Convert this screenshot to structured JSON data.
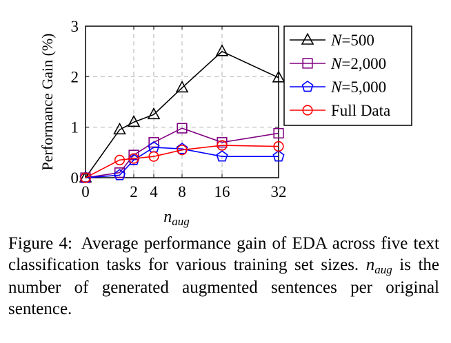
{
  "chart_data": {
    "type": "line",
    "title": "",
    "xlabel": "n",
    "xlabel_sub": "aug",
    "ylabel": "Performance Gain (%)",
    "xticks": [
      0,
      2,
      4,
      8,
      16,
      32
    ],
    "yticks": [
      0,
      1,
      2,
      3
    ],
    "ylim": [
      0,
      3
    ],
    "x_scale": "sqrt",
    "grid": "dashed",
    "legend_position": "outside-right",
    "series": [
      {
        "name": "N=500",
        "marker": "triangle",
        "color": "#000000",
        "x": [
          0,
          1,
          2,
          4,
          8,
          16,
          32
        ],
        "y": [
          0,
          0.95,
          1.1,
          1.25,
          1.78,
          2.5,
          1.98
        ]
      },
      {
        "name": "N=2,000",
        "marker": "square",
        "color": "#800080",
        "x": [
          0,
          1,
          2,
          4,
          8,
          16,
          32
        ],
        "y": [
          0,
          0.1,
          0.45,
          0.7,
          0.98,
          0.7,
          0.88
        ]
      },
      {
        "name": "N=5,000",
        "marker": "pentagon",
        "color": "#0000ff",
        "x": [
          0,
          1,
          2,
          4,
          8,
          16,
          32
        ],
        "y": [
          0,
          0.05,
          0.35,
          0.6,
          0.57,
          0.42,
          0.42
        ]
      },
      {
        "name": "Full Data",
        "marker": "circle",
        "color": "#ff0000",
        "x": [
          0,
          1,
          2,
          4,
          8,
          16,
          32
        ],
        "y": [
          0,
          0.35,
          0.38,
          0.42,
          0.55,
          0.64,
          0.62
        ]
      }
    ]
  },
  "caption": {
    "label": "Figure 4:",
    "text_a": "Average performance gain of EDA across five text classification tasks for various training set sizes.",
    "math_n": "n",
    "math_sub": "aug",
    "text_b": "is the number of generated augmented sentences per original sentence."
  }
}
